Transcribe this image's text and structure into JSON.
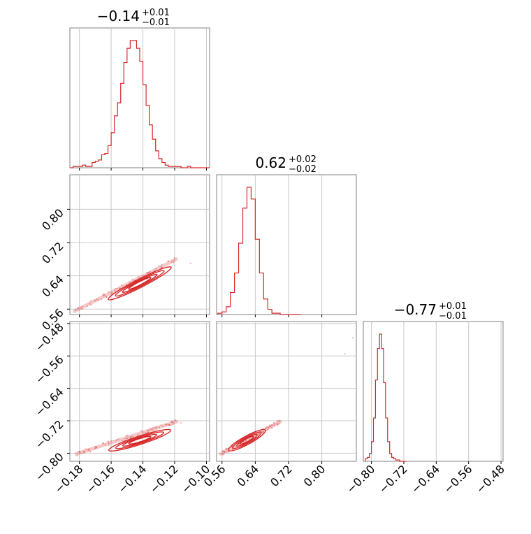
{
  "chart_data": {
    "type": "corner",
    "title_labels": [
      {
        "value": "−0.14",
        "plus": "+0.01",
        "minus": "−0.01"
      },
      {
        "value": "0.62",
        "plus": "+0.02",
        "minus": "−0.02"
      },
      {
        "value": "−0.77",
        "plus": "+0.01",
        "minus": "−0.01"
      }
    ],
    "parameters": [
      {
        "index": 0,
        "range": [
          -0.186,
          -0.098
        ],
        "ticks": [
          -0.18,
          -0.16,
          -0.14,
          -0.12,
          -0.1
        ],
        "tick_labels": [
          "−0.18",
          "−0.16",
          "−0.14",
          "−0.12",
          "−0.10"
        ]
      },
      {
        "index": 1,
        "range": [
          0.547,
          0.883
        ],
        "ticks": [
          0.56,
          0.64,
          0.72,
          0.8
        ],
        "tick_labels": [
          "0.56",
          "0.64",
          "0.72",
          "0.80"
        ]
      },
      {
        "index": 2,
        "range": [
          -0.82,
          -0.475
        ],
        "ticks": [
          -0.8,
          -0.72,
          -0.64,
          -0.56,
          -0.48
        ],
        "tick_labels": [
          "−0.80",
          "−0.72",
          "−0.64",
          "−0.56",
          "−0.48"
        ]
      }
    ],
    "histograms": [
      {
        "param": 0,
        "bin_width": 0.002,
        "bin_starts": [
          -0.186,
          -0.184,
          -0.182,
          -0.18,
          -0.178,
          -0.176,
          -0.174,
          -0.172,
          -0.17,
          -0.168,
          -0.166,
          -0.164,
          -0.162,
          -0.16,
          -0.158,
          -0.156,
          -0.154,
          -0.152,
          -0.15,
          -0.148,
          -0.146,
          -0.144,
          -0.142,
          -0.14,
          -0.138,
          -0.136,
          -0.134,
          -0.132,
          -0.13,
          -0.128,
          -0.126,
          -0.124,
          -0.122,
          -0.12,
          -0.118,
          -0.116,
          -0.114,
          -0.112,
          -0.11,
          -0.108,
          -0.106,
          -0.104,
          -0.102,
          -0.1
        ],
        "counts": [
          0.0,
          0.01,
          0.01,
          0.01,
          0.02,
          0.01,
          0.01,
          0.04,
          0.05,
          0.06,
          0.1,
          0.11,
          0.17,
          0.27,
          0.4,
          0.5,
          0.65,
          0.81,
          0.92,
          0.98,
          0.98,
          0.92,
          0.82,
          0.64,
          0.48,
          0.33,
          0.22,
          0.13,
          0.07,
          0.04,
          0.02,
          0.01,
          0.01,
          0.01,
          0.01,
          0.0,
          0.0,
          0.01,
          0.0,
          0.0,
          0.0,
          0.0,
          0.0,
          0.0
        ],
        "color": "#d62728"
      },
      {
        "param": 1,
        "bin_width": 0.01,
        "bin_starts": [
          0.55,
          0.56,
          0.57,
          0.58,
          0.59,
          0.6,
          0.61,
          0.62,
          0.63,
          0.64,
          0.65,
          0.66,
          0.67,
          0.68,
          0.69,
          0.7,
          0.71,
          0.72,
          0.73,
          0.74
        ],
        "counts": [
          0.01,
          0.02,
          0.06,
          0.17,
          0.32,
          0.55,
          0.82,
          0.98,
          0.89,
          0.58,
          0.32,
          0.12,
          0.04,
          0.01,
          0.01,
          0.0,
          0.0,
          0.0,
          0.0,
          0.0
        ],
        "color": "#d62728"
      },
      {
        "param": 2,
        "bin_width": 0.005,
        "bin_starts": [
          -0.815,
          -0.81,
          -0.805,
          -0.8,
          -0.795,
          -0.79,
          -0.785,
          -0.78,
          -0.775,
          -0.77,
          -0.765,
          -0.76,
          -0.755,
          -0.75,
          -0.745,
          -0.74,
          -0.735,
          -0.73,
          -0.725,
          -0.72
        ],
        "counts": [
          0.02,
          0.03,
          0.06,
          0.15,
          0.33,
          0.62,
          0.86,
          0.97,
          0.86,
          0.6,
          0.33,
          0.15,
          0.06,
          0.03,
          0.02,
          0.01,
          0.01,
          0.0,
          0.0,
          0.0
        ],
        "color": "#d62728"
      }
    ],
    "scatter_panels": [
      {
        "x_param": 0,
        "y_param": 1,
        "samples": {
          "x_start": -0.183,
          "x_end": -0.119,
          "y_start": 0.555,
          "y_end": 0.68
        },
        "outliers": [
          {
            "x": -0.11,
            "y": 0.67
          }
        ],
        "contour_center": {
          "x": -0.142,
          "y": 0.622
        },
        "color": "#d62728"
      },
      {
        "x_param": 0,
        "y_param": 2,
        "samples": {
          "x_start": -0.182,
          "x_end": -0.119,
          "y_start": -0.802,
          "y_end": -0.722
        },
        "outliers": [
          {
            "x": -0.116,
            "y": -0.725
          }
        ],
        "contour_center": {
          "x": -0.142,
          "y": -0.768
        },
        "color": "#d62728"
      },
      {
        "x_param": 1,
        "y_param": 2,
        "samples": {
          "x_start": 0.557,
          "x_end": 0.7,
          "y_start": -0.802,
          "y_end": -0.722
        },
        "outliers": [
          {
            "x": 0.855,
            "y": -0.555
          },
          {
            "x": 0.875,
            "y": -0.515
          }
        ],
        "contour_center": {
          "x": 0.62,
          "y": -0.768
        },
        "color": "#d62728"
      }
    ],
    "grid": true,
    "accent_color": "#d62728"
  }
}
